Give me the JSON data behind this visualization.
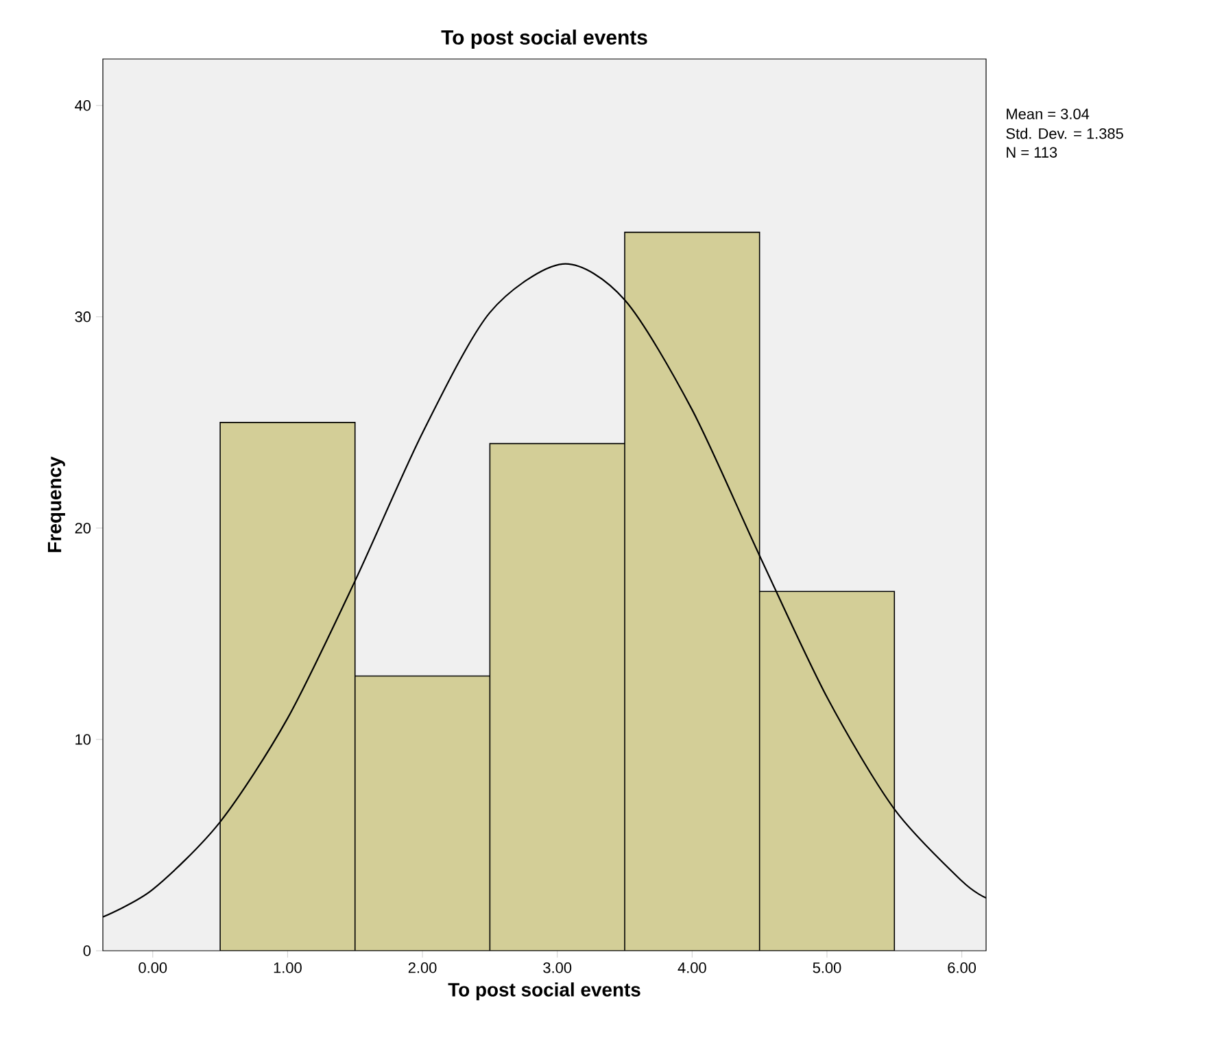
{
  "chart_data": {
    "type": "histogram",
    "title": "To post social events",
    "xlabel": "To post social events",
    "ylabel": "Frequency",
    "bins": [
      0.5,
      1.5,
      2.5,
      3.5,
      4.5,
      5.5
    ],
    "values": [
      25,
      13,
      24,
      34,
      17
    ],
    "color": "#d3ce97",
    "series": [
      {
        "type": "line",
        "color": "#000000",
        "x": [
          -0.37,
          0,
          0.5,
          1,
          1.5,
          2,
          2.5,
          3.04,
          3.5,
          4,
          4.5,
          5,
          5.5,
          6,
          6.18
        ],
        "values": [
          1.6,
          2.9,
          6.1,
          11,
          17.5,
          24.5,
          30.2,
          32.5,
          30.8,
          25.6,
          18.7,
          12,
          6.7,
          3.3,
          2.5
        ]
      }
    ],
    "xlim": [
      -0.37,
      6.18
    ],
    "ylim": [
      0,
      42.2
    ],
    "xticks": [
      {
        "value": 0,
        "label": "0.00"
      },
      {
        "value": 1,
        "label": "1.00"
      },
      {
        "value": 2,
        "label": "2.00"
      },
      {
        "value": 3,
        "label": "3.00"
      },
      {
        "value": 4,
        "label": "4.00"
      },
      {
        "value": 5,
        "label": "5.00"
      },
      {
        "value": 6,
        "label": "6.00"
      }
    ],
    "yticks": [
      0,
      10,
      20,
      30,
      40
    ],
    "annotations": [
      "Mean = 3.04",
      "Std. Dev. = 1.385",
      "N = 113"
    ]
  }
}
